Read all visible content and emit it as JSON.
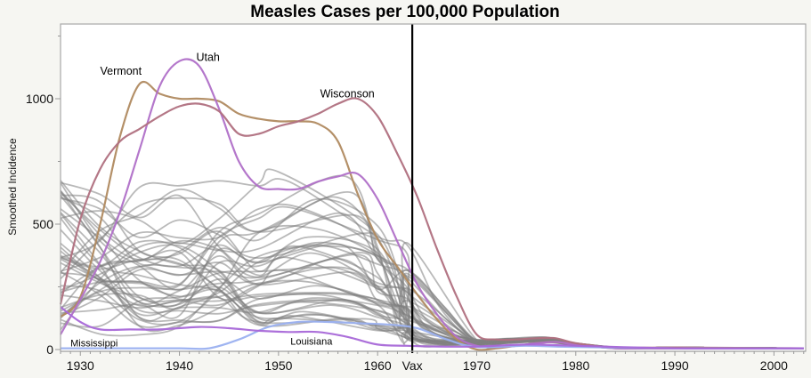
{
  "chart_data": {
    "type": "line",
    "title": "Measles Cases per 100,000 Population",
    "xlabel": "",
    "ylabel": "Smoothed Incidence",
    "xlim": [
      1928,
      2003.2
    ],
    "ylim": [
      0,
      1270
    ],
    "x_ticks": [
      1930,
      1940,
      1950,
      1960,
      1970,
      1980,
      1990,
      2000
    ],
    "x_tick_labels": [
      "1930",
      "1940",
      "1950",
      "1960",
      "1970",
      "1980",
      "1990",
      "2000"
    ],
    "y_ticks": [
      0,
      500,
      1000
    ],
    "y_tick_labels": [
      "0",
      "500",
      "1000"
    ],
    "y_minor_ticks": [
      250,
      750,
      1250
    ],
    "grid": false,
    "vertical_marker": {
      "x": 1963.5,
      "label": "Vax"
    },
    "highlight_series": [
      {
        "name": "Vermont",
        "color": "#b08a60",
        "x": [
          1928,
          1930,
          1932,
          1934,
          1936,
          1938,
          1940,
          1942,
          1944,
          1946,
          1948,
          1950,
          1952,
          1954,
          1956,
          1958,
          1960,
          1962,
          1964,
          1966,
          1968,
          1970,
          1972,
          1974,
          1976,
          1978,
          1980,
          1984,
          1990,
          2003
        ],
        "values": [
          130,
          210,
          500,
          850,
          1060,
          1020,
          1000,
          1000,
          990,
          940,
          920,
          910,
          910,
          900,
          830,
          620,
          440,
          330,
          220,
          120,
          40,
          0,
          5,
          15,
          25,
          30,
          20,
          5,
          5,
          5
        ]
      },
      {
        "name": "Utah",
        "color": "#b070c8",
        "x": [
          1928,
          1930,
          1932,
          1934,
          1936,
          1938,
          1940,
          1942,
          1944,
          1946,
          1948,
          1950,
          1952,
          1954,
          1956,
          1958,
          1960,
          1962,
          1964,
          1966,
          1968,
          1970,
          1972,
          1974,
          1976,
          1978,
          1980,
          1984,
          1990,
          2003
        ],
        "values": [
          60,
          200,
          350,
          550,
          800,
          1050,
          1150,
          1130,
          960,
          750,
          650,
          640,
          640,
          670,
          690,
          700,
          600,
          430,
          260,
          140,
          50,
          15,
          10,
          15,
          25,
          30,
          20,
          5,
          5,
          5
        ]
      },
      {
        "name": "Wisconson",
        "color": "#b07080",
        "x": [
          1928,
          1930,
          1932,
          1934,
          1936,
          1938,
          1940,
          1942,
          1944,
          1946,
          1948,
          1950,
          1952,
          1954,
          1956,
          1958,
          1960,
          1962,
          1964,
          1966,
          1968,
          1970,
          1972,
          1974,
          1976,
          1978,
          1980,
          1984,
          1990,
          2003
        ],
        "values": [
          180,
          520,
          720,
          830,
          880,
          930,
          970,
          980,
          950,
          860,
          860,
          890,
          910,
          940,
          980,
          1000,
          930,
          780,
          610,
          400,
          210,
          60,
          40,
          40,
          45,
          45,
          25,
          8,
          8,
          5
        ]
      },
      {
        "name": "Mississippi",
        "color": "#9ab0f0",
        "x": [
          1928,
          1930,
          1935,
          1940,
          1943,
          1946,
          1949,
          1952,
          1955,
          1958,
          1961,
          1964,
          1967,
          1970,
          1975,
          1980,
          1990,
          2003
        ],
        "values": [
          5,
          5,
          5,
          5,
          5,
          40,
          90,
          110,
          110,
          105,
          100,
          85,
          40,
          10,
          15,
          10,
          5,
          5
        ]
      },
      {
        "name": "Louisiana",
        "color": "#a868d8",
        "x": [
          1928,
          1930,
          1932,
          1935,
          1938,
          1942,
          1945,
          1948,
          1951,
          1954,
          1957,
          1960,
          1963,
          1966,
          1970,
          1975,
          1980,
          1990,
          2003
        ],
        "values": [
          170,
          110,
          80,
          80,
          80,
          90,
          85,
          75,
          70,
          70,
          50,
          20,
          15,
          12,
          12,
          20,
          15,
          5,
          5
        ]
      }
    ],
    "annotations": [
      {
        "text": "Vermont",
        "x": 1932.0,
        "y": 1095
      },
      {
        "text": "Utah",
        "x": 1941.7,
        "y": 1150
      },
      {
        "text": "Wisconson",
        "x": 1954.2,
        "y": 1005
      },
      {
        "text": "Mississippi",
        "x": 1929.0,
        "y": 12
      },
      {
        "text": "Louisiana",
        "x": 1951.2,
        "y": 20
      }
    ],
    "background_series_color": "#808080",
    "background_series_count": 45
  }
}
